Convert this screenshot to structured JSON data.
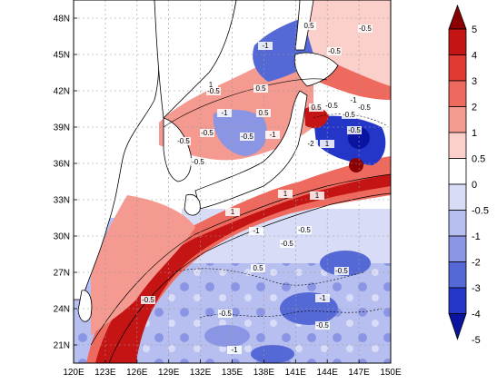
{
  "map": {
    "x_ticks": [
      "120E",
      "123E",
      "126E",
      "129E",
      "132E",
      "135E",
      "138E",
      "141E",
      "144E",
      "147E",
      "150E"
    ],
    "y_ticks": [
      "21N",
      "24N",
      "27N",
      "30N",
      "33N",
      "36N",
      "39N",
      "42N",
      "45N",
      "48N"
    ],
    "lon_range": [
      120,
      150
    ],
    "lat_range": [
      19.5,
      49.5
    ],
    "grid": true,
    "land_color": "#ffffff",
    "coastline_color": "#000000",
    "contour_labels": [
      {
        "text": "0.5"
      },
      {
        "text": "-0.5"
      },
      {
        "text": "-1"
      },
      {
        "text": "1"
      },
      {
        "text": "-0.5"
      },
      {
        "text": "-0.5"
      },
      {
        "text": "-1"
      },
      {
        "text": "0.5"
      },
      {
        "text": "-0.5"
      },
      {
        "text": "-1"
      },
      {
        "text": "-2"
      },
      {
        "text": "1"
      },
      {
        "text": "0.5"
      },
      {
        "text": "-0.5"
      },
      {
        "text": "-1"
      },
      {
        "text": "-0.5"
      },
      {
        "text": "0.5"
      },
      {
        "text": "-0.5"
      },
      {
        "text": "-0.5"
      },
      {
        "text": "-0.5"
      },
      {
        "text": "-0.5"
      },
      {
        "text": "-0.5"
      },
      {
        "text": "-1"
      },
      {
        "text": "-0.5"
      },
      {
        "text": "-0.5"
      },
      {
        "text": "-0.5"
      },
      {
        "text": "-0.5"
      },
      {
        "text": "-1"
      },
      {
        "text": "-1"
      },
      {
        "text": "1"
      },
      {
        "text": "0.5"
      },
      {
        "text": "1"
      },
      {
        "text": "1"
      },
      {
        "text": "-0.5"
      },
      {
        "text": "-0.5"
      }
    ]
  },
  "colorbar": {
    "levels": [
      "5",
      "4",
      "3",
      "2",
      "1",
      "0.5",
      "0",
      "-0.5",
      "-1",
      "-2",
      "-3",
      "-4",
      "-5"
    ],
    "colors": [
      "#8b0000",
      "#c41414",
      "#e03a32",
      "#ef6a5e",
      "#f59a90",
      "#fbd0cb",
      "#ffffff",
      "#d8dcf6",
      "#b7bff0",
      "#8a96e4",
      "#5468d6",
      "#2336c8",
      "#0a14a0"
    ]
  }
}
